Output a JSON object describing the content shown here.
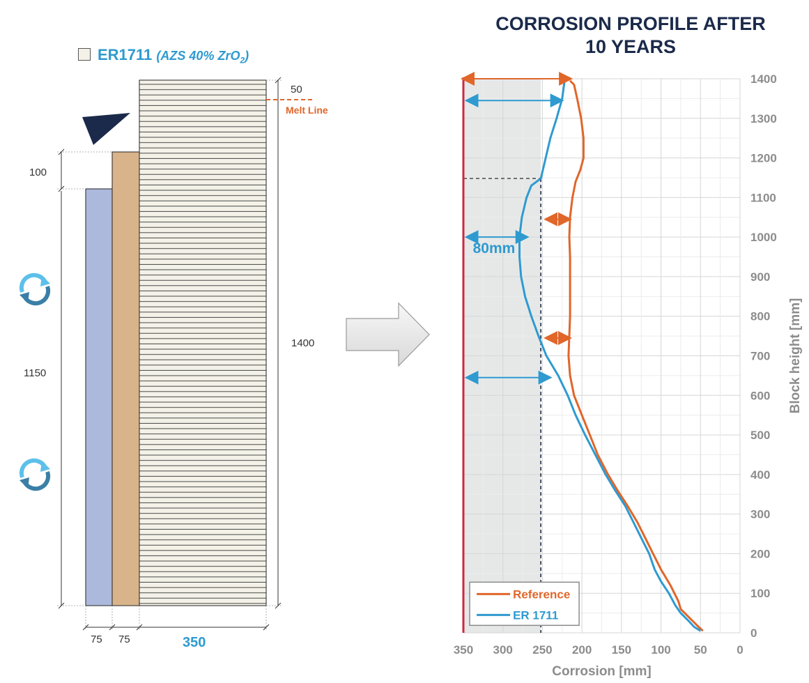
{
  "title": "CORROSION PROFILE AFTER 10 YEARS",
  "title_lines": [
    "CORROSION PROFILE AFTER",
    "10 YEARS"
  ],
  "block_diagram": {
    "material_label": "ER1711",
    "material_spec": "AZS 40% ZrO",
    "material_spec_sub": "2",
    "material_spec_close": ")",
    "dim_50": "50",
    "melt_line": "Melt Line",
    "dim_100": "100",
    "dim_1150": "1150",
    "dim_1400": "1400",
    "dim_75a": "75",
    "dim_75b": "75",
    "dim_350": "350",
    "colors": {
      "layer1": "#adb9dc",
      "layer2": "#d9b48a",
      "block": "#f4f2e8",
      "melt": "#e0662a",
      "arrow": "#1b2a4a",
      "icon": "#3fa3d6"
    },
    "icons": [
      "circular-arrows-icon",
      "circular-arrows-icon"
    ]
  },
  "chart_data": {
    "type": "line",
    "title": "CORROSION PROFILE AFTER 10 YEARS",
    "xlabel": "Corrosion [mm]",
    "ylabel": "Block height [mm]",
    "xlim": [
      350,
      0
    ],
    "ylim": [
      0,
      1400
    ],
    "x_ticks": [
      "350",
      "300",
      "250",
      "200",
      "150",
      "100",
      "50",
      "0"
    ],
    "y_ticks": [
      "0",
      "100",
      "200",
      "300",
      "400",
      "500",
      "600",
      "700",
      "800",
      "900",
      "1000",
      "1100",
      "1200",
      "1300",
      "1400"
    ],
    "grid": true,
    "legend_position": "bottom-left",
    "annotation_80mm": "80mm",
    "reference_line_x": 350,
    "shaded_region_x": [
      350,
      252
    ],
    "shaded_region_y": [
      0,
      1400
    ],
    "dashed_guides": {
      "vertical_x": 252,
      "horizontal_y": 1148
    },
    "series": [
      {
        "name": "Reference",
        "color": "#e0662a",
        "points": [
          [
            47,
            5
          ],
          [
            55,
            20
          ],
          [
            65,
            40
          ],
          [
            75,
            60
          ],
          [
            78,
            80
          ],
          [
            88,
            120
          ],
          [
            100,
            160
          ],
          [
            110,
            200
          ],
          [
            120,
            240
          ],
          [
            130,
            280
          ],
          [
            142,
            320
          ],
          [
            155,
            360
          ],
          [
            167,
            400
          ],
          [
            180,
            450
          ],
          [
            190,
            500
          ],
          [
            200,
            550
          ],
          [
            210,
            600
          ],
          [
            215,
            650
          ],
          [
            217,
            700
          ],
          [
            216,
            750
          ],
          [
            215,
            800
          ],
          [
            215,
            900
          ],
          [
            215,
            950
          ],
          [
            216,
            1000
          ],
          [
            215,
            1050
          ],
          [
            212,
            1100
          ],
          [
            208,
            1140
          ],
          [
            202,
            1170
          ],
          [
            198,
            1200
          ],
          [
            198,
            1250
          ],
          [
            201,
            1300
          ],
          [
            206,
            1350
          ],
          [
            210,
            1385
          ],
          [
            215,
            1395
          ]
        ]
      },
      {
        "name": "ER 1711",
        "color": "#2e9ad0",
        "points": [
          [
            50,
            5
          ],
          [
            58,
            15
          ],
          [
            65,
            30
          ],
          [
            75,
            50
          ],
          [
            82,
            70
          ],
          [
            90,
            100
          ],
          [
            100,
            130
          ],
          [
            108,
            160
          ],
          [
            115,
            200
          ],
          [
            125,
            240
          ],
          [
            135,
            280
          ],
          [
            145,
            320
          ],
          [
            158,
            360
          ],
          [
            170,
            400
          ],
          [
            183,
            450
          ],
          [
            196,
            500
          ],
          [
            208,
            550
          ],
          [
            218,
            600
          ],
          [
            230,
            650
          ],
          [
            245,
            700
          ],
          [
            255,
            750
          ],
          [
            264,
            800
          ],
          [
            272,
            850
          ],
          [
            277,
            900
          ],
          [
            279,
            950
          ],
          [
            279,
            1000
          ],
          [
            276,
            1050
          ],
          [
            270,
            1100
          ],
          [
            264,
            1130
          ],
          [
            252,
            1148
          ],
          [
            247,
            1190
          ],
          [
            240,
            1250
          ],
          [
            232,
            1300
          ],
          [
            225,
            1350
          ],
          [
            222,
            1395
          ]
        ]
      }
    ],
    "corrosion_arrows": [
      {
        "color": "#e0662a",
        "x1": 350,
        "x2": 215,
        "y": 1400
      },
      {
        "color": "#2e9ad0",
        "x1": 345,
        "x2": 226,
        "y": 1345
      },
      {
        "color": "#2e9ad0",
        "x1": 345,
        "x2": 270,
        "y": 1000
      },
      {
        "color": "#2e9ad0",
        "x1": 345,
        "x2": 241,
        "y": 645
      },
      {
        "color": "#e0662a",
        "x1": 245,
        "x2": 216,
        "y": 1045
      },
      {
        "color": "#e0662a",
        "x1": 245,
        "x2": 216,
        "y": 745
      }
    ]
  },
  "process_arrow": {
    "name": "right-arrow-icon"
  }
}
